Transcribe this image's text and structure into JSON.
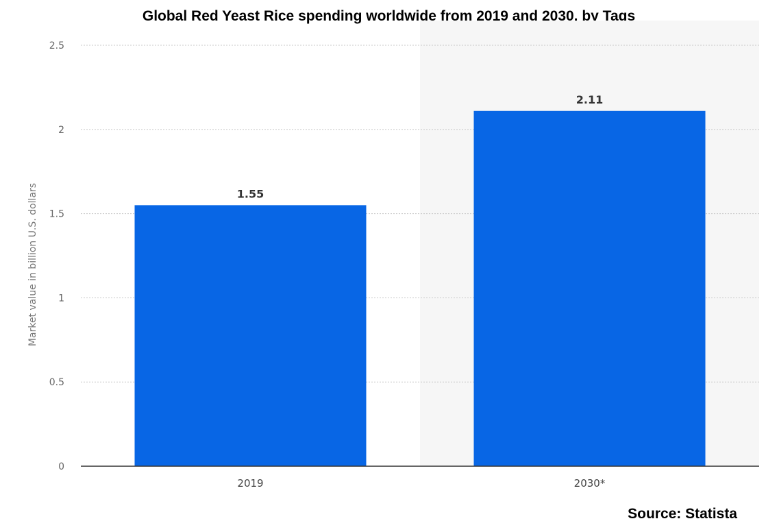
{
  "chart_data": {
    "type": "bar",
    "title": "Global Red Yeast Rice spending worldwide from 2019 and 2030, by Tags",
    "xlabel": "",
    "ylabel": "Market value in billion U.S. dollars",
    "categories": [
      "2019",
      "2030*"
    ],
    "values": [
      1.55,
      2.11
    ],
    "data_labels": [
      "1.55",
      "2.11"
    ],
    "ylim": [
      0,
      2.5
    ],
    "yticks": [
      0,
      0.5,
      1,
      1.5,
      2,
      2.5
    ],
    "ytick_labels": [
      "0",
      "0.5",
      "1",
      "1.5",
      "2",
      "2.5"
    ],
    "grid": true,
    "grid_style": "dotted",
    "bar_color": "#0866e5",
    "forecast_shading_color": "#f6f6f6",
    "forecast_shaded_categories": [
      "2030*"
    ],
    "legend": "none"
  },
  "source": "Source: Statista"
}
